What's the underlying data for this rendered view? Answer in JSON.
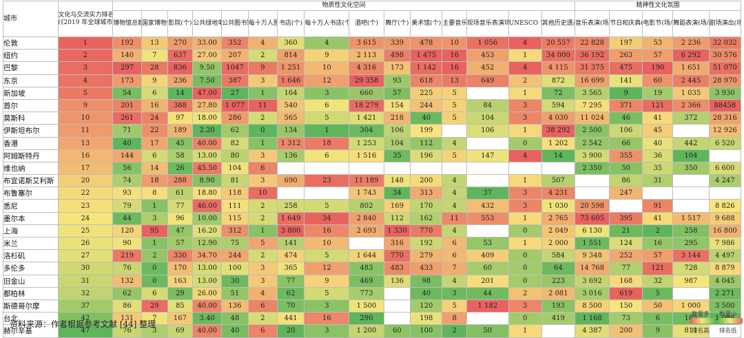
{
  "header": {
    "city_col": "城市",
    "rank_col": "文化与交流实力排名\n(《2019 年全球城市实力指数报告》)",
    "group_material": "物质性文化空间",
    "group_spiritual": "精神性文化氛围",
    "columns": [
      "博物馆总数(个)",
      "国家博物馆(个)",
      "影院(个)",
      "公共绿地率(%)",
      "公共图书馆(个)",
      "每十万人图书馆(个/10万人)",
      "书店(个)",
      "每十万人书店(个/10万人)",
      "酒吧(个)",
      "舞厅(个)",
      "美术馆(个)",
      "主要音乐厅(个)",
      "现场音乐表演场所(个)",
      "UNESCO 世界遗产(个)",
      "其他历史遗产(个)",
      "音乐表演(场/年)",
      "节日和庆典(场/年)",
      "电影节(场/年)",
      "舞蹈表演(场/年)",
      "剧场演出(场/年)"
    ]
  },
  "rows": [
    {
      "city": "伦敦",
      "rank": "1",
      "values": [
        "192",
        "13",
        "270",
        "33.00",
        "352",
        "4",
        "360",
        "4",
        "3 615",
        "339",
        "478",
        "10",
        "1 056",
        "4",
        "20 557",
        "22 828",
        "197",
        "53",
        "2 236",
        "32 032"
      ]
    },
    {
      "city": "纽约",
      "rank": "2",
      "values": [
        "140",
        "7",
        "637",
        "27.00",
        "207",
        "2",
        "814",
        "9",
        "2 113",
        "498",
        "1 475",
        "16",
        "453",
        "1",
        "34 000",
        "36 192",
        "263",
        "57",
        "6 292",
        "30 576"
      ]
    },
    {
      "city": "巴黎",
      "rank": "3",
      "values": [
        "297",
        "28",
        "836",
        "9.50",
        "1047",
        "9",
        "1 251",
        "10",
        "4 316",
        "173",
        "1 142",
        "16",
        "452",
        "4",
        "4 115",
        "31 375",
        "475",
        "190",
        "1 651",
        "51 070"
      ]
    },
    {
      "city": "东京",
      "rank": "4",
      "values": [
        "173",
        "9",
        "236",
        "7.50",
        "387",
        "3",
        "1 646",
        "12",
        "29 358",
        "93",
        "618",
        "13",
        "649",
        "2",
        "872",
        "16 699",
        "141",
        "60",
        "2 445",
        "28 970"
      ]
    },
    {
      "city": "新加坡",
      "rank": "5",
      "values": [
        "54",
        "6",
        "14",
        "47.00",
        "27",
        "1",
        "164",
        "3",
        "660",
        "57",
        "225",
        "5",
        "",
        "1",
        "72",
        "3 565",
        "9",
        "19",
        "1 035",
        "3 930"
      ]
    },
    {
      "city": "首尔",
      "rank": "9",
      "values": [
        "201",
        "16",
        "388",
        "27.80",
        "1 077",
        "11",
        "540",
        "6",
        "18 279",
        "154",
        "244",
        "5",
        "84",
        "3",
        "594",
        "7 295",
        "371",
        "121",
        "2 366",
        "88458"
      ]
    },
    {
      "city": "莫斯科",
      "rank": "10",
      "values": [
        "261",
        "24",
        "97",
        "18.00",
        "286",
        "2",
        "565",
        "5",
        "1 421",
        "218",
        "40",
        "5",
        "104",
        "3",
        "4 030",
        "11 024",
        "46",
        "41",
        "372",
        "28 316"
      ]
    },
    {
      "city": "伊斯坦布尔",
      "rank": "11",
      "values": [
        "71",
        "22",
        "189",
        "2.20",
        "62",
        "0",
        "134",
        "1",
        "304",
        "106",
        "199",
        "",
        "106",
        "1",
        "38 292",
        "2 500",
        "106",
        "45",
        "",
        "12 926"
      ]
    },
    {
      "city": "香港",
      "rank": "13",
      "values": [
        "40",
        "17",
        "45",
        "40.00",
        "82",
        "1",
        "1 312",
        "18",
        "1 253",
        "104",
        "112",
        "4",
        "",
        "0",
        "1 202",
        "2 542",
        "66",
        "40",
        "442",
        "6 520"
      ]
    },
    {
      "city": "阿姆斯特丹",
      "rank": "16",
      "values": [
        "144",
        "6",
        "58",
        "13.00",
        "80",
        "3",
        "136",
        "6",
        "1 516",
        "35",
        "196",
        "5",
        "147",
        "4",
        "14",
        "3 900",
        "355",
        "36",
        "104",
        ""
      ]
    },
    {
      "city": "维也纳",
      "rank": "17",
      "values": [
        "56",
        "14",
        "26",
        "45.50",
        "104",
        "6",
        "",
        "",
        "",
        "",
        "",
        "",
        "",
        "",
        "",
        "2 350",
        "50",
        "35",
        "350",
        "6 600"
      ]
    },
    {
      "city": "布宜诺斯艾利斯",
      "rank": "20",
      "values": [
        "74",
        "18",
        "288",
        "8.90",
        "81",
        "3",
        "690",
        "23",
        "11 189",
        "148",
        "200",
        "4",
        "",
        "1",
        "507",
        "",
        "86",
        "31",
        "",
        "4 247"
      ]
    },
    {
      "city": "布鲁塞尔",
      "rank": "22",
      "values": [
        "93",
        "8",
        "61",
        "18.80",
        "118",
        "10",
        "",
        "",
        "1 743",
        "34",
        "313",
        "4",
        "37",
        "3",
        "4 231",
        "",
        "247",
        "",
        "",
        ""
      ]
    },
    {
      "city": "悉尼",
      "rank": "23",
      "values": [
        "79",
        "1",
        "77",
        "46.00",
        "111",
        "2",
        "258",
        "5",
        "802",
        "169",
        "170",
        "4",
        "432",
        "3",
        "1 030",
        "20 598",
        "",
        "91",
        "",
        "8 826"
      ]
    },
    {
      "city": "墨尔本",
      "rank": "24",
      "values": [
        "44",
        "3",
        "96",
        "10.00",
        "115",
        "2",
        "1 649",
        "34",
        "2 840",
        "112",
        "162",
        "11",
        "553",
        "1",
        "2 765",
        "73 605",
        "395",
        "41",
        "1 517",
        "9 688"
      ]
    },
    {
      "city": "上海",
      "rank": "25",
      "values": [
        "120",
        "95",
        "47",
        "16.20",
        "312",
        "1",
        "3 800",
        "16",
        "2 693",
        "1 330",
        "770",
        "4",
        "",
        "0",
        "2 049",
        "6 130",
        "21",
        "2",
        "258",
        "16 800"
      ]
    },
    {
      "city": "米兰",
      "rank": "26",
      "values": [
        "90",
        "1",
        "57",
        "12.90",
        "75",
        "5",
        "141",
        "10",
        "",
        "316",
        "192",
        "6",
        "53",
        "1",
        "2 000",
        "1 551",
        "124",
        "16",
        "295",
        "7 986"
      ]
    },
    {
      "city": "洛杉矶",
      "rank": "27",
      "values": [
        "219",
        "2",
        "330",
        "34.70",
        "244",
        "2",
        "474",
        "5",
        "1 644",
        "770",
        "279",
        "6",
        "409",
        "0",
        "584",
        "9 348",
        "252",
        "57",
        "3 144",
        "4 497"
      ]
    },
    {
      "city": "多伦多",
      "rank": "30",
      "values": [
        "76",
        "0",
        "170",
        "13.00",
        "100",
        "3",
        "365",
        "12",
        "483",
        "483",
        "433",
        "7",
        "60",
        "0",
        "64",
        "14 768",
        "77",
        "121",
        "728",
        "8 879"
      ]
    },
    {
      "city": "旧金山",
      "rank": "31",
      "values": [
        "132",
        "0",
        "163",
        "13.00",
        "30",
        "3",
        "77",
        "9",
        "469",
        "136",
        "98",
        "4",
        "201",
        "0",
        "223",
        "3 692",
        "168",
        "32",
        "987",
        "4 045"
      ]
    },
    {
      "city": "都柏林",
      "rank": "32",
      "values": [
        "62",
        "6",
        "29",
        "26.00",
        "51",
        "4",
        "62",
        "5",
        "773",
        "",
        "40",
        "3",
        "44",
        "2",
        "2 081",
        "3 016",
        "619",
        "5",
        "",
        "2 271"
      ]
    },
    {
      "city": "斯德哥尔摩",
      "rank": "37",
      "values": [
        "86",
        "29",
        "85",
        "40.00",
        "136",
        "6",
        "70",
        "3",
        "1 500",
        "",
        "120",
        "5",
        "1 182",
        "3",
        "193",
        "8 500",
        "150",
        "50",
        "1 000",
        "3 500"
      ]
    },
    {
      "city": "台北",
      "rank": "42",
      "values": [
        "131",
        "7",
        "167",
        "3.40",
        "48",
        "2",
        "441",
        "16",
        "290",
        "",
        "198",
        "8",
        "",
        "0",
        "419",
        "1 168",
        "73",
        "6",
        "185",
        "1 086"
      ]
    },
    {
      "city": "赫尔辛基",
      "rank": "47",
      "values": [
        "76",
        "3",
        "69",
        "40.00",
        "40",
        "6",
        "20",
        "3",
        "1 200",
        "60",
        "100",
        "2",
        "50",
        "1",
        "",
        "4 387",
        "200",
        "9",
        "811",
        ""
      ]
    }
  ],
  "footer": "资料来源：作者根据参考文献 [44] 整理",
  "legend": {
    "left_top": "数量多",
    "right_top": "数量少",
    "left_bottom": "排名高",
    "right_bottom": "排名低",
    "color_high": "#e8625f",
    "color_mid": "#f7e57c",
    "color_low": "#5fb55b"
  }
}
